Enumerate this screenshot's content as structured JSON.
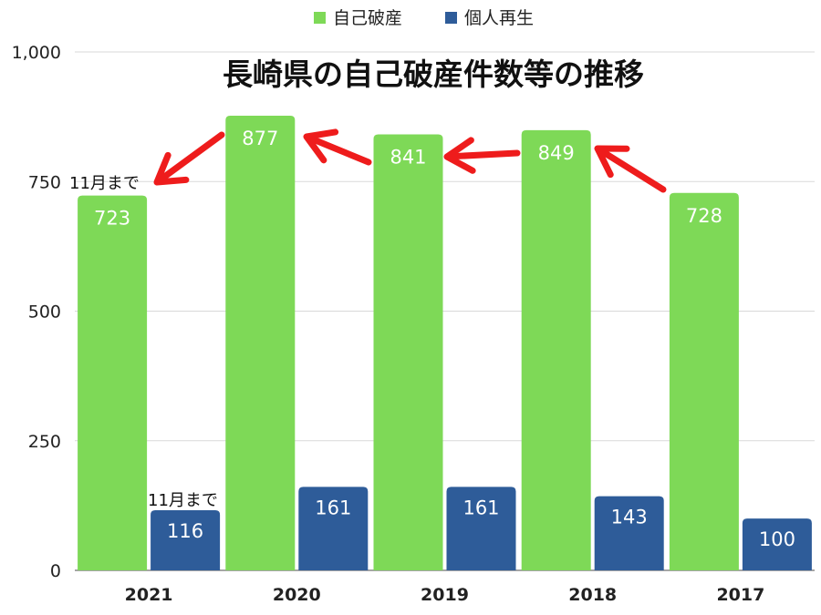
{
  "chart_data": {
    "type": "bar",
    "title": "長崎県の自己破産件数等の推移",
    "categories": [
      "2021",
      "2020",
      "2019",
      "2018",
      "2017"
    ],
    "series": [
      {
        "name": "自己破産",
        "values": [
          723,
          877,
          841,
          849,
          728
        ],
        "color": "#7ed957"
      },
      {
        "name": "個人再生",
        "values": [
          116,
          161,
          161,
          143,
          100
        ],
        "color": "#2e5c99"
      }
    ],
    "ylim": [
      0,
      1000
    ],
    "yticks": [
      0,
      250,
      500,
      750,
      1000
    ],
    "ytick_labels": [
      "0",
      "250",
      "500",
      "750",
      "1,000"
    ],
    "grid": true,
    "legend_position": "top-center",
    "annotation": "11月まで",
    "annotation_color": "#ee1c1c"
  }
}
